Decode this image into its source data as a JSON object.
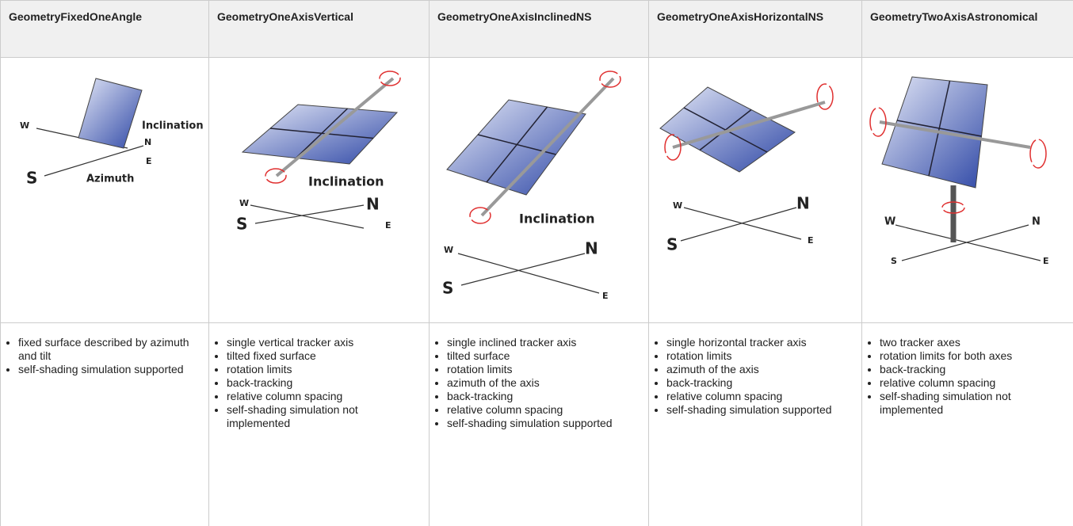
{
  "table": {
    "headers": [
      "GeometryFixedOneAngle",
      "GeometryOneAxisVertical",
      "GeometryOneAxisInclinedNS",
      "GeometryOneAxisHorizontalNS",
      "GeometryTwoAxisAstronomical"
    ],
    "diagrams": [
      {
        "labels": [
          "W",
          "Inclination",
          "N",
          "E",
          "S",
          "Azimuth"
        ]
      },
      {
        "labels": [
          "Inclination",
          "W",
          "N",
          "S",
          "E"
        ]
      },
      {
        "labels": [
          "Inclination",
          "W",
          "N",
          "S",
          "E"
        ]
      },
      {
        "labels": [
          "W",
          "N",
          "S",
          "E"
        ]
      },
      {
        "labels": [
          "W",
          "N",
          "S",
          "E"
        ]
      }
    ],
    "features": [
      [
        "fixed surface described by azimuth and tilt",
        "self-shading simulation supported"
      ],
      [
        "single vertical tracker axis",
        "tilted fixed surface",
        "rotation limits",
        "back-tracking",
        "relative column spacing",
        "self-shading simulation not implemented"
      ],
      [
        "single inclined tracker axis",
        "tilted surface",
        "rotation limits",
        "azimuth of the axis",
        "back-tracking",
        "relative column spacing",
        "self-shading simulation supported"
      ],
      [
        "single horizontal tracker axis",
        "rotation limits",
        "azimuth of the axis",
        "back-tracking",
        "relative column spacing",
        "self-shading simulation supported"
      ],
      [
        "two tracker axes",
        "rotation limits for both axes",
        "back-tracking",
        "relative column spacing",
        "self-shading simulation not implemented"
      ]
    ]
  }
}
